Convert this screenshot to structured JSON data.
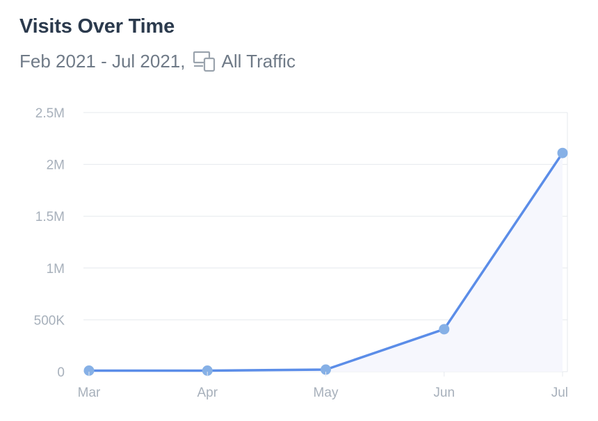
{
  "header": {
    "title": "Visits Over Time",
    "date_range": "Feb 2021 - Jul 2021,",
    "traffic_icon": "devices-icon",
    "traffic_label": "All Traffic"
  },
  "colors": {
    "line": "#5b8de8",
    "point": "#86b0e6",
    "area": "#f6f7fd",
    "grid": "#e6e9ee",
    "axis_text": "#a7b0bb"
  },
  "chart_data": {
    "type": "area",
    "title": "",
    "xlabel": "",
    "ylabel": "",
    "categories": [
      "Mar",
      "Apr",
      "May",
      "Jun",
      "Jul"
    ],
    "series": [
      {
        "values": [
          10000,
          10000,
          20000,
          410000,
          2110000
        ]
      }
    ],
    "ylim": [
      0,
      2500000
    ],
    "yticks": [
      {
        "value": 0,
        "label": "0"
      },
      {
        "value": 500000,
        "label": "500K"
      },
      {
        "value": 1000000,
        "label": "1M"
      },
      {
        "value": 1500000,
        "label": "1.5M"
      },
      {
        "value": 2000000,
        "label": "2M"
      },
      {
        "value": 2500000,
        "label": "2.5M"
      }
    ],
    "grid": true,
    "legend": "none"
  }
}
